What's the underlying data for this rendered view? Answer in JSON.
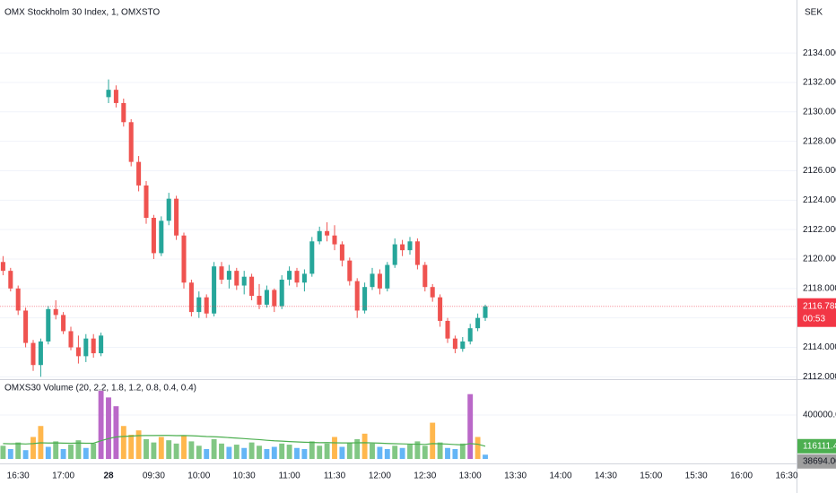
{
  "chart_data": {
    "type": "candlestick",
    "title": "OMX Stockholm 30 Index, 1, OMXSTO",
    "volume_title": "OMXS30 Volume (20, 2.2, 1.8, 1.2, 0.8, 0.4, 0.4)",
    "currency": "SEK",
    "countdown": "00:53",
    "last_price": 2116.7889,
    "ma_last": 116111.4588,
    "last_volume": {
      "value": 38694,
      "label": "38694.0000"
    },
    "up_color": "#26a69a",
    "down_color": "#ef5350",
    "ma_color": "#4caf50",
    "grid": true,
    "categories": [
      null,
      null,
      "16:30",
      null,
      null,
      null,
      null,
      null,
      "17:00",
      null,
      null,
      null,
      null,
      null,
      "28",
      null,
      null,
      null,
      null,
      null,
      "09:30",
      null,
      null,
      null,
      null,
      null,
      "10:00",
      null,
      null,
      null,
      null,
      null,
      "10:30",
      null,
      null,
      null,
      null,
      null,
      "11:00",
      null,
      null,
      null,
      null,
      null,
      "11:30",
      null,
      null,
      null,
      null,
      null,
      "12:00",
      null,
      null,
      null,
      null,
      null,
      "12:30",
      null,
      null,
      null,
      null,
      null,
      "13:00",
      null,
      null,
      null,
      null,
      null,
      "13:30",
      null,
      null,
      null,
      null,
      null,
      "14:00",
      null,
      null,
      null,
      null,
      null,
      "14:30",
      null,
      null,
      null,
      null,
      null,
      "15:00",
      null,
      null,
      null,
      null,
      null,
      "15:30",
      null,
      null,
      null,
      null,
      null,
      "16:00",
      null,
      null,
      null,
      null,
      null,
      "16:30"
    ],
    "open": [
      2119.8,
      2119.2,
      2118.0,
      2116.5,
      2114.3,
      2112.8,
      2114.4,
      2116.6,
      2116.2,
      2115.1,
      2114.0,
      2113.4,
      2114.6,
      2113.6,
      2131.0,
      2131.5,
      2130.6,
      2129.3,
      2126.6,
      2125.0,
      2122.8,
      2120.4,
      2122.6,
      2124.1,
      2121.6,
      2118.4,
      2116.4,
      2117.4,
      2116.3,
      2119.5,
      2118.6,
      2119.2,
      2118.2,
      2118.8,
      2117.5,
      2116.9,
      2117.9,
      2116.8,
      2118.6,
      2119.2,
      2118.4,
      2119.0,
      2121.2,
      2121.9,
      2121.6,
      2121.0,
      2119.9,
      2118.5,
      2116.5,
      2118.1,
      2119.0,
      2118.0,
      2119.6,
      2121.0,
      2120.6,
      2121.2,
      2119.6,
      2118.1,
      2117.4,
      2115.8,
      2114.6,
      2113.9,
      2114.4,
      2115.3,
      2116.0,
      null,
      null,
      null,
      null,
      null,
      null,
      null,
      null,
      null,
      null,
      null,
      null,
      null,
      null,
      null,
      null,
      null,
      null,
      null,
      null,
      null,
      null,
      null,
      null,
      null,
      null,
      null,
      null,
      null,
      null,
      null,
      null,
      null,
      null,
      null,
      null,
      null,
      null,
      null,
      null
    ],
    "high": [
      2120.2,
      2119.4,
      2118.2,
      2116.7,
      2114.5,
      2114.6,
      2116.8,
      2117.2,
      2116.4,
      2115.4,
      2114.8,
      2114.9,
      2114.9,
      2115.0,
      2132.2,
      2131.8,
      2130.9,
      2129.5,
      2127.0,
      2125.3,
      2123.0,
      2122.9,
      2124.5,
      2124.3,
      2121.8,
      2118.6,
      2117.8,
      2117.6,
      2119.8,
      2119.8,
      2119.6,
      2119.4,
      2119.2,
      2119.0,
      2118.3,
      2118.2,
      2118.0,
      2118.9,
      2119.5,
      2119.4,
      2119.3,
      2121.5,
      2122.2,
      2122.5,
      2122.3,
      2121.2,
      2120.1,
      2118.7,
      2118.4,
      2119.4,
      2119.3,
      2119.8,
      2121.4,
      2121.3,
      2121.5,
      2121.4,
      2119.8,
      2118.3,
      2117.6,
      2116.0,
      2114.8,
      2114.7,
      2115.6,
      2116.3,
      2116.9,
      null,
      null,
      null,
      null,
      null,
      null,
      null,
      null,
      null,
      null,
      null,
      null,
      null,
      null,
      null,
      null,
      null,
      null,
      null,
      null,
      null,
      null,
      null,
      null,
      null,
      null,
      null,
      null,
      null,
      null,
      null,
      null,
      null,
      null,
      null,
      null,
      null,
      null,
      null,
      null
    ],
    "low": [
      2118.9,
      2117.8,
      2116.2,
      2114.0,
      2112.4,
      2112.0,
      2114.2,
      2115.9,
      2114.9,
      2113.8,
      2112.9,
      2113.0,
      2113.3,
      2113.4,
      2130.6,
      2130.3,
      2129.0,
      2126.3,
      2124.6,
      2122.4,
      2120.0,
      2120.2,
      2122.3,
      2121.3,
      2118.0,
      2116.1,
      2116.0,
      2116.0,
      2116.1,
      2118.3,
      2118.0,
      2117.9,
      2117.6,
      2117.2,
      2116.6,
      2116.7,
      2116.4,
      2116.6,
      2118.2,
      2118.1,
      2117.8,
      2118.8,
      2121.0,
      2121.2,
      2120.6,
      2119.5,
      2118.2,
      2116.0,
      2116.3,
      2117.9,
      2117.6,
      2117.8,
      2119.4,
      2120.2,
      2120.3,
      2119.3,
      2117.8,
      2117.1,
      2115.4,
      2114.3,
      2113.6,
      2113.7,
      2114.2,
      2115.1,
      2115.8,
      null,
      null,
      null,
      null,
      null,
      null,
      null,
      null,
      null,
      null,
      null,
      null,
      null,
      null,
      null,
      null,
      null,
      null,
      null,
      null,
      null,
      null,
      null,
      null,
      null,
      null,
      null,
      null,
      null,
      null,
      null,
      null,
      null,
      null,
      null,
      null,
      null,
      null,
      null,
      null
    ],
    "close": [
      2119.2,
      2118.0,
      2116.5,
      2114.3,
      2112.8,
      2114.4,
      2116.6,
      2116.2,
      2115.1,
      2114.0,
      2113.4,
      2114.6,
      2113.6,
      2114.8,
      2131.5,
      2130.6,
      2129.3,
      2126.6,
      2125.0,
      2122.8,
      2120.4,
      2122.6,
      2124.1,
      2121.6,
      2118.4,
      2116.4,
      2117.4,
      2116.3,
      2119.5,
      2118.6,
      2119.2,
      2118.2,
      2118.8,
      2117.5,
      2116.9,
      2117.9,
      2116.8,
      2118.6,
      2119.2,
      2118.4,
      2119.0,
      2121.2,
      2121.9,
      2121.6,
      2121.0,
      2119.9,
      2118.5,
      2116.5,
      2118.1,
      2119.0,
      2118.0,
      2119.6,
      2121.0,
      2120.6,
      2121.2,
      2119.6,
      2118.1,
      2117.4,
      2115.8,
      2114.6,
      2113.9,
      2114.4,
      2115.3,
      2116.0,
      2116.79,
      null,
      null,
      null,
      null,
      null,
      null,
      null,
      null,
      null,
      null,
      null,
      null,
      null,
      null,
      null,
      null,
      null,
      null,
      null,
      null,
      null,
      null,
      null,
      null,
      null,
      null,
      null,
      null,
      null,
      null,
      null,
      null,
      null,
      null,
      null,
      null,
      null,
      null,
      null,
      null
    ],
    "volume": [
      120000,
      90000,
      150000,
      80000,
      200000,
      300000,
      110000,
      160000,
      90000,
      130000,
      170000,
      100000,
      140000,
      620000,
      560000,
      480000,
      300000,
      220000,
      260000,
      180000,
      150000,
      200000,
      170000,
      140000,
      210000,
      160000,
      120000,
      90000,
      180000,
      140000,
      110000,
      130000,
      100000,
      150000,
      120000,
      90000,
      110000,
      140000,
      130000,
      100000,
      90000,
      160000,
      120000,
      140000,
      200000,
      110000,
      150000,
      180000,
      230000,
      140000,
      110000,
      90000,
      120000,
      100000,
      130000,
      160000,
      120000,
      330000,
      150000,
      100000,
      90000,
      140000,
      590000,
      200000,
      38694,
      null,
      null,
      null,
      null,
      null,
      null,
      null,
      null,
      null,
      null,
      null,
      null,
      null,
      null,
      null,
      null,
      null,
      null,
      null,
      null,
      null,
      null,
      null,
      null,
      null,
      null,
      null,
      null,
      null,
      null,
      null,
      null,
      null,
      null,
      null,
      null,
      null,
      null,
      null,
      null
    ],
    "volume_colors": [
      "#81c784",
      "#64b5f6",
      "#81c784",
      "#64b5f6",
      "#ffb74d",
      "#ffb74d",
      "#64b5f6",
      "#81c784",
      "#64b5f6",
      "#81c784",
      "#81c784",
      "#64b5f6",
      "#81c784",
      "#ba68c8",
      "#ba68c8",
      "#ba68c8",
      "#ffb74d",
      "#ffb74d",
      "#ffb74d",
      "#81c784",
      "#81c784",
      "#ffb74d",
      "#81c784",
      "#81c784",
      "#ffb74d",
      "#81c784",
      "#81c784",
      "#64b5f6",
      "#81c784",
      "#81c784",
      "#64b5f6",
      "#81c784",
      "#64b5f6",
      "#81c784",
      "#81c784",
      "#64b5f6",
      "#64b5f6",
      "#81c784",
      "#81c784",
      "#64b5f6",
      "#64b5f6",
      "#81c784",
      "#81c784",
      "#81c784",
      "#ffb74d",
      "#64b5f6",
      "#81c784",
      "#81c784",
      "#ffb74d",
      "#81c784",
      "#64b5f6",
      "#64b5f6",
      "#81c784",
      "#64b5f6",
      "#81c784",
      "#81c784",
      "#81c784",
      "#ffb74d",
      "#81c784",
      "#64b5f6",
      "#64b5f6",
      "#81c784",
      "#ba68c8",
      "#ffb74d",
      "#64b5f6",
      null,
      null,
      null,
      null,
      null,
      null,
      null,
      null,
      null,
      null,
      null,
      null,
      null,
      null,
      null,
      null,
      null,
      null,
      null,
      null,
      null,
      null,
      null,
      null,
      null,
      null,
      null,
      null,
      null,
      null,
      null,
      null,
      null,
      null,
      null,
      null,
      null,
      null,
      null,
      null
    ],
    "volume_ma": [
      140000,
      138000,
      139000,
      136000,
      140000,
      147000,
      145000,
      146000,
      144000,
      143000,
      145000,
      143000,
      143000,
      166000,
      185000,
      200000,
      205000,
      208000,
      212000,
      213000,
      213000,
      214000,
      214000,
      212000,
      213000,
      211000,
      208000,
      204000,
      202000,
      199000,
      194000,
      190000,
      185000,
      180000,
      176000,
      170000,
      165000,
      162000,
      158000,
      155000,
      152000,
      150000,
      148000,
      149000,
      147000,
      146000,
      146000,
      147000,
      148000,
      146000,
      144000,
      141000,
      139000,
      137000,
      135000,
      134000,
      132000,
      140000,
      138000,
      135000,
      131000,
      128000,
      140000,
      134000,
      116111.4588,
      null,
      null,
      null,
      null,
      null,
      null,
      null,
      null,
      null,
      null,
      null,
      null,
      null,
      null,
      null,
      null,
      null,
      null,
      null,
      null,
      null,
      null,
      null,
      null,
      null,
      null,
      null,
      null,
      null,
      null,
      null,
      null,
      null,
      null,
      null,
      null,
      null,
      null,
      null,
      null
    ],
    "ylim": [
      2111.9,
      2137.6
    ],
    "yticks": [
      {
        "value": 2112,
        "label": "2112.0000"
      },
      {
        "value": 2114,
        "label": "2114.0000"
      },
      {
        "value": 2116,
        "label": "2116.0000"
      },
      {
        "value": 2118,
        "label": "2118.0000"
      },
      {
        "value": 2120,
        "label": "2120.0000"
      },
      {
        "value": 2122,
        "label": "2122.0000"
      },
      {
        "value": 2124,
        "label": "2124.0000"
      },
      {
        "value": 2126,
        "label": "2126.0000"
      },
      {
        "value": 2128,
        "label": "2128.0000"
      },
      {
        "value": 2130,
        "label": "2130.0000"
      },
      {
        "value": 2132,
        "label": "2132.0000"
      },
      {
        "value": 2134,
        "label": "2134.0000"
      }
    ],
    "volume_ylim": [
      0,
      710000
    ],
    "volume_yticks": [
      {
        "value": 400000,
        "label": "400000.0000"
      }
    ]
  }
}
